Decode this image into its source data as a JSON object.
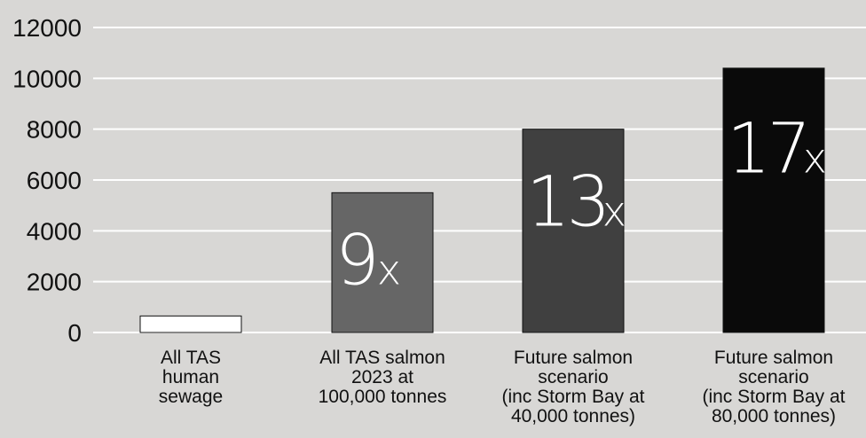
{
  "chart_data": {
    "type": "bar",
    "categories": [
      [
        "All TAS",
        "human",
        "sewage"
      ],
      [
        "All TAS salmon",
        "2023 at",
        "100,000 tonnes"
      ],
      [
        "Future salmon",
        "scenario",
        "(inc Storm Bay at",
        "40,000 tonnes)"
      ],
      [
        "Future salmon",
        "scenario",
        "(inc Storm Bay at",
        "80,000 tonnes)"
      ]
    ],
    "values": [
      650,
      5500,
      8000,
      10400
    ],
    "bar_labels": [
      {
        "num": "",
        "x": ""
      },
      {
        "num": "9",
        "x": "x"
      },
      {
        "num": "13",
        "x": "x"
      },
      {
        "num": "17",
        "x": "x"
      }
    ],
    "bar_colors": [
      "#ffffff",
      "#666666",
      "#404040",
      "#0a0a0a"
    ],
    "y_ticks": [
      "0",
      "2000",
      "4000",
      "6000",
      "8000",
      "10000",
      "12000"
    ],
    "ylim": [
      0,
      12000
    ],
    "grid": true,
    "title": "",
    "xlabel": "",
    "ylabel": ""
  }
}
